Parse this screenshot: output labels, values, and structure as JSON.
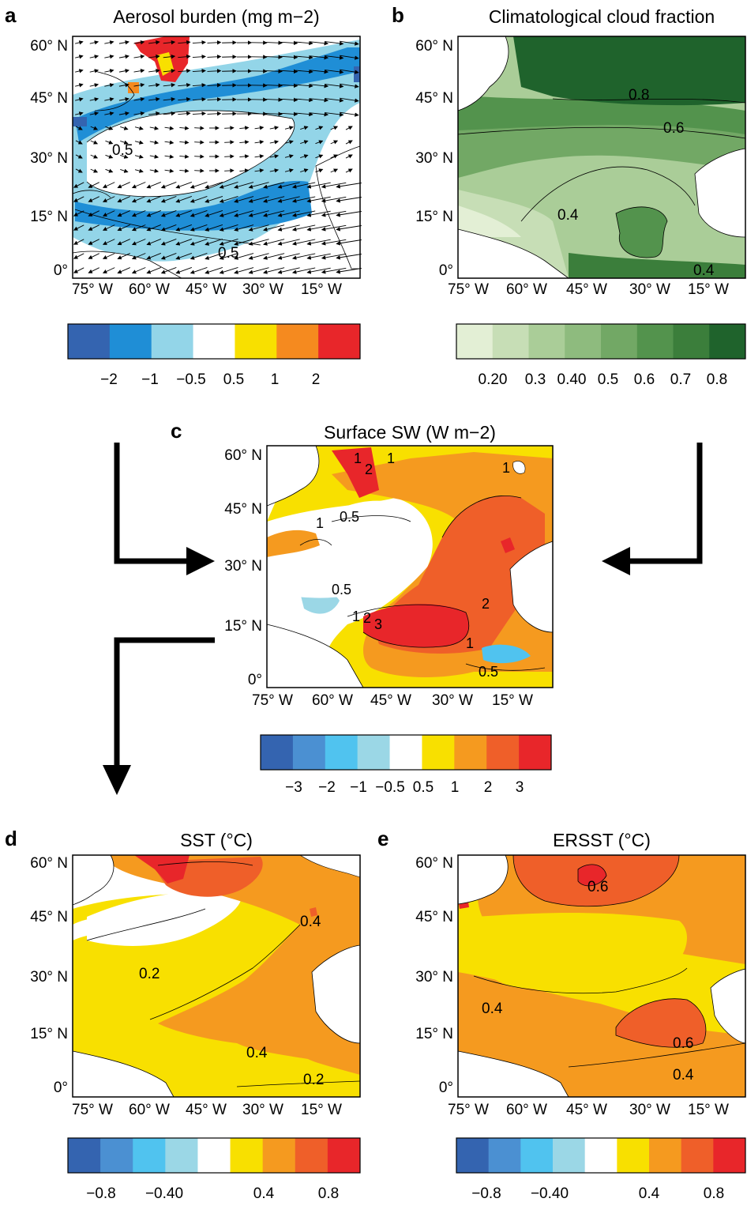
{
  "chart_data": [
    {
      "panel": "a",
      "type": "heatmap",
      "title": "Aerosol burden (mg m−2)",
      "xticks": [
        "75° W",
        "60° W",
        "45° W",
        "30° W",
        "15° W"
      ],
      "yticks": [
        "60° N",
        "45° N",
        "30° N",
        "15° N",
        "0°"
      ],
      "xlim": [
        -80,
        -5
      ],
      "ylim": [
        0,
        60
      ],
      "contour_labels": [
        "0.5",
        "0.5"
      ],
      "vectors": true,
      "colorbar": {
        "colors": [
          "#3464b0",
          "#1f8ed6",
          "#93d5e8",
          "#ffffff",
          "#f8e000",
          "#f58a1f",
          "#e8262a"
        ],
        "tick_labels": [
          "−2",
          "−1",
          "−0.5",
          "0.5",
          "1",
          "2"
        ]
      }
    },
    {
      "panel": "b",
      "type": "heatmap",
      "title": "Climatological cloud fraction",
      "xticks": [
        "75° W",
        "60° W",
        "45° W",
        "30° W",
        "15° W"
      ],
      "yticks": [
        "60° N",
        "45° N",
        "30° N",
        "15° N",
        "0°"
      ],
      "xlim": [
        -80,
        -5
      ],
      "ylim": [
        0,
        60
      ],
      "contour_labels": [
        "0.8",
        "0.6",
        "0.4",
        "0.4"
      ],
      "colorbar": {
        "colors": [
          "#e3efd5",
          "#c7deb6",
          "#aacd98",
          "#8ebb7e",
          "#72a865",
          "#53934d",
          "#3b7e3b",
          "#1f632c"
        ],
        "tick_labels": [
          "0.20",
          "0.3",
          "0.40",
          "0.5",
          "0.6",
          "0.7",
          "0.8"
        ]
      }
    },
    {
      "panel": "c",
      "type": "heatmap",
      "title": "Surface SW (W m−2)",
      "xticks": [
        "75° W",
        "60° W",
        "45° W",
        "30° W",
        "15° W"
      ],
      "yticks": [
        "60° N",
        "45° N",
        "30° N",
        "15° N",
        "0°"
      ],
      "xlim": [
        -80,
        -5
      ],
      "ylim": [
        0,
        60
      ],
      "contour_labels": [
        "1",
        "2",
        "1",
        "1",
        "0.5",
        "1",
        "0.5",
        "1",
        "2",
        "3",
        "2",
        "1",
        "0.5"
      ],
      "colorbar": {
        "colors": [
          "#3464b0",
          "#4b90d2",
          "#50c3ef",
          "#9bd7e6",
          "#ffffff",
          "#f8e000",
          "#f59a1f",
          "#ef5f29",
          "#e8262a"
        ],
        "tick_labels": [
          "−3",
          "−2",
          "−1",
          "−0.5",
          "0.5",
          "1",
          "2",
          "3"
        ]
      }
    },
    {
      "panel": "d",
      "type": "heatmap",
      "title": "SST (°C)",
      "xticks": [
        "75° W",
        "60° W",
        "45° W",
        "30° W",
        "15° W"
      ],
      "yticks": [
        "60° N",
        "45° N",
        "30° N",
        "15° N",
        "0°"
      ],
      "xlim": [
        -80,
        -5
      ],
      "ylim": [
        0,
        60
      ],
      "contour_labels": [
        "0.4",
        "0.2",
        "0.4",
        "0.2"
      ],
      "colorbar": {
        "colors": [
          "#3464b0",
          "#4b90d2",
          "#50c3ef",
          "#9bd7e6",
          "#ffffff",
          "#f8e000",
          "#f59a1f",
          "#ef5f29",
          "#e8262a"
        ],
        "tick_labels": [
          "−0.8",
          "−0.40",
          "0.4",
          "0.8"
        ]
      }
    },
    {
      "panel": "e",
      "type": "heatmap",
      "title": "ERSST (°C)",
      "xticks": [
        "75° W",
        "60° W",
        "45° W",
        "30° W",
        "15° W"
      ],
      "yticks": [
        "60° N",
        "45° N",
        "30° N",
        "15° N",
        "0°"
      ],
      "xlim": [
        -80,
        -5
      ],
      "ylim": [
        0,
        60
      ],
      "contour_labels": [
        "0.6",
        "0.4",
        "0.6",
        "0.4"
      ],
      "colorbar": {
        "colors": [
          "#3464b0",
          "#4b90d2",
          "#50c3ef",
          "#9bd7e6",
          "#ffffff",
          "#f8e000",
          "#f59a1f",
          "#ef5f29",
          "#e8262a"
        ],
        "tick_labels": [
          "−0.8",
          "−0.40",
          "0.4",
          "0.8"
        ]
      }
    }
  ]
}
